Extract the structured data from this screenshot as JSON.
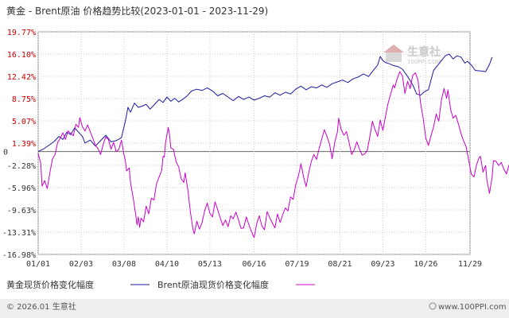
{
  "chart_data": {
    "type": "line",
    "title": "黄金 - Brent原油 价格趋势比较(2023-01-01 - 2023-11-29)",
    "y_ticks": [
      "19.77%",
      "16.10%",
      "12.42%",
      "8.75%",
      "5.07%",
      "1.39%",
      "-2.28%",
      "-5.96%",
      "-9.63%",
      "-13.31%",
      "-16.98%"
    ],
    "y_tick_values": [
      19.77,
      16.1,
      12.42,
      8.75,
      5.07,
      1.39,
      -2.28,
      -5.96,
      -9.63,
      -13.31,
      -16.98
    ],
    "zero_label": "0",
    "ylim": [
      -16.98,
      19.77
    ],
    "x_ticks": [
      "01/01",
      "02/03",
      "03/08",
      "04/10",
      "05/13",
      "06/16",
      "07/19",
      "08/21",
      "09/23",
      "10/26",
      "11/29"
    ],
    "x_tick_days": [
      0,
      33,
      66,
      99,
      132,
      166,
      199,
      232,
      265,
      298,
      332
    ],
    "xlim_days": [
      0,
      332
    ],
    "series": [
      {
        "name": "黄金现货价格变化幅度",
        "color": "#1a1aa0",
        "points": [
          [
            0,
            0
          ],
          [
            4,
            0.4
          ],
          [
            8,
            1.0
          ],
          [
            12,
            1.6
          ],
          [
            16,
            2.5
          ],
          [
            19,
            2.0
          ],
          [
            22,
            3.2
          ],
          [
            25,
            2.8
          ],
          [
            28,
            3.9
          ],
          [
            31,
            3.2
          ],
          [
            34,
            2.5
          ],
          [
            36,
            1.4
          ],
          [
            40,
            1.9
          ],
          [
            44,
            0.9
          ],
          [
            48,
            1.8
          ],
          [
            52,
            2.7
          ],
          [
            56,
            1.6
          ],
          [
            60,
            1.8
          ],
          [
            64,
            2.3
          ],
          [
            67,
            5.0
          ],
          [
            69,
            7.3
          ],
          [
            71,
            6.5
          ],
          [
            74,
            8.0
          ],
          [
            77,
            7.3
          ],
          [
            80,
            7.5
          ],
          [
            83,
            7.8
          ],
          [
            86,
            7.0
          ],
          [
            90,
            7.9
          ],
          [
            93,
            8.6
          ],
          [
            96,
            8.1
          ],
          [
            99,
            9.0
          ],
          [
            102,
            8.3
          ],
          [
            105,
            8.8
          ],
          [
            108,
            8.2
          ],
          [
            111,
            8.6
          ],
          [
            114,
            9.1
          ],
          [
            118,
            10.0
          ],
          [
            122,
            10.3
          ],
          [
            126,
            10.1
          ],
          [
            130,
            10.5
          ],
          [
            134,
            10.0
          ],
          [
            138,
            9.2
          ],
          [
            142,
            9.6
          ],
          [
            146,
            9.0
          ],
          [
            150,
            8.4
          ],
          [
            154,
            9.1
          ],
          [
            158,
            8.6
          ],
          [
            162,
            9.0
          ],
          [
            166,
            8.5
          ],
          [
            170,
            8.8
          ],
          [
            174,
            9.2
          ],
          [
            178,
            9.0
          ],
          [
            182,
            9.7
          ],
          [
            186,
            9.3
          ],
          [
            190,
            9.8
          ],
          [
            194,
            9.5
          ],
          [
            198,
            10.3
          ],
          [
            202,
            10.8
          ],
          [
            206,
            10.2
          ],
          [
            210,
            10.7
          ],
          [
            214,
            10.5
          ],
          [
            218,
            11.0
          ],
          [
            222,
            10.6
          ],
          [
            226,
            11.2
          ],
          [
            230,
            11.5
          ],
          [
            234,
            11.8
          ],
          [
            238,
            11.4
          ],
          [
            242,
            12.0
          ],
          [
            246,
            12.3
          ],
          [
            250,
            12.8
          ],
          [
            254,
            12.4
          ],
          [
            258,
            13.5
          ],
          [
            261,
            14.3
          ],
          [
            263,
            15.7
          ],
          [
            265,
            15.0
          ],
          [
            267,
            14.7
          ],
          [
            270,
            14.5
          ],
          [
            273,
            14.2
          ],
          [
            277,
            14.0
          ],
          [
            280,
            13.6
          ],
          [
            284,
            12.4
          ],
          [
            288,
            11.0
          ],
          [
            291,
            9.5
          ],
          [
            294,
            9.3
          ],
          [
            297,
            9.9
          ],
          [
            300,
            10.2
          ],
          [
            302,
            11.8
          ],
          [
            304,
            13.4
          ],
          [
            307,
            14.2
          ],
          [
            310,
            15.0
          ],
          [
            313,
            15.8
          ],
          [
            316,
            16.1
          ],
          [
            319,
            15.3
          ],
          [
            322,
            15.8
          ],
          [
            325,
            15.6
          ],
          [
            328,
            14.6
          ],
          [
            330,
            14.9
          ],
          [
            333,
            14.3
          ],
          [
            336,
            13.4
          ],
          [
            340,
            13.3
          ],
          [
            344,
            13.2
          ],
          [
            347,
            14.4
          ],
          [
            349,
            15.6
          ]
        ]
      },
      {
        "name": "Brent原油现货价格变化幅度",
        "color": "#cc00cc",
        "points": [
          [
            0,
            -0.3
          ],
          [
            2,
            -2.0
          ],
          [
            3,
            -5.7
          ],
          [
            5,
            -4.8
          ],
          [
            7,
            -6.1
          ],
          [
            9,
            -3.5
          ],
          [
            11,
            -1.2
          ],
          [
            13,
            -0.5
          ],
          [
            15,
            1.5
          ],
          [
            17,
            2.2
          ],
          [
            19,
            3.1
          ],
          [
            21,
            2.0
          ],
          [
            23,
            3.4
          ],
          [
            25,
            3.0
          ],
          [
            27,
            2.6
          ],
          [
            29,
            4.5
          ],
          [
            31,
            4.0
          ],
          [
            32,
            5.6
          ],
          [
            34,
            4.1
          ],
          [
            36,
            3.4
          ],
          [
            38,
            4.4
          ],
          [
            40,
            3.3
          ],
          [
            42,
            2.2
          ],
          [
            44,
            1.0
          ],
          [
            46,
            0.5
          ],
          [
            48,
            -0.5
          ],
          [
            50,
            1.2
          ],
          [
            52,
            2.4
          ],
          [
            54,
            2.0
          ],
          [
            56,
            0.4
          ],
          [
            58,
            1.5
          ],
          [
            60,
            0.0
          ],
          [
            62,
            0.3
          ],
          [
            64,
            1.9
          ],
          [
            66,
            -0.5
          ],
          [
            67,
            -1.5
          ],
          [
            68,
            -3.2
          ],
          [
            70,
            -2.7
          ],
          [
            71,
            -5.1
          ],
          [
            73,
            -7.6
          ],
          [
            75,
            -10.5
          ],
          [
            76,
            -12.1
          ],
          [
            77,
            -10.8
          ],
          [
            78,
            -12.5
          ],
          [
            79,
            -11.0
          ],
          [
            81,
            -11.6
          ],
          [
            83,
            -9.0
          ],
          [
            85,
            -10.3
          ],
          [
            87,
            -7.7
          ],
          [
            89,
            -8.0
          ],
          [
            91,
            -5.3
          ],
          [
            93,
            -4.2
          ],
          [
            95,
            -3.1
          ],
          [
            96,
            -0.8
          ],
          [
            97,
            -0.9
          ],
          [
            98,
            1.6
          ],
          [
            100,
            4.0
          ],
          [
            101,
            2.8
          ],
          [
            102,
            0.6
          ],
          [
            104,
            0.4
          ],
          [
            106,
            -1.7
          ],
          [
            108,
            -2.5
          ],
          [
            110,
            -4.5
          ],
          [
            112,
            -5.1
          ],
          [
            113,
            -3.5
          ],
          [
            115,
            -6.2
          ],
          [
            117,
            -10.0
          ],
          [
            119,
            -12.8
          ],
          [
            120,
            -13.6
          ],
          [
            122,
            -11.5
          ],
          [
            124,
            -12.8
          ],
          [
            126,
            -11.7
          ],
          [
            128,
            -9.8
          ],
          [
            130,
            -8.5
          ],
          [
            132,
            -10.2
          ],
          [
            134,
            -10.8
          ],
          [
            136,
            -8.3
          ],
          [
            138,
            -9.6
          ],
          [
            140,
            -11.0
          ],
          [
            142,
            -12.2
          ],
          [
            144,
            -11.3
          ],
          [
            146,
            -12.4
          ],
          [
            148,
            -10.6
          ],
          [
            150,
            -11.1
          ],
          [
            152,
            -10.0
          ],
          [
            154,
            -11.3
          ],
          [
            156,
            -12.7
          ],
          [
            158,
            -12.6
          ],
          [
            160,
            -10.8
          ],
          [
            162,
            -12.1
          ],
          [
            164,
            -13.2
          ],
          [
            166,
            -14.2
          ],
          [
            168,
            -11.9
          ],
          [
            170,
            -10.6
          ],
          [
            172,
            -12.3
          ],
          [
            174,
            -12.9
          ],
          [
            176,
            -9.9
          ],
          [
            178,
            -10.9
          ],
          [
            180,
            -11.8
          ],
          [
            182,
            -12.6
          ],
          [
            184,
            -10.3
          ],
          [
            186,
            -11.7
          ],
          [
            188,
            -10.4
          ],
          [
            190,
            -9.3
          ],
          [
            192,
            -9.8
          ],
          [
            194,
            -7.5
          ],
          [
            196,
            -7.9
          ],
          [
            198,
            -5.5
          ],
          [
            200,
            -4.1
          ],
          [
            202,
            -2.0
          ],
          [
            204,
            -4.2
          ],
          [
            206,
            -5.8
          ],
          [
            208,
            -3.5
          ],
          [
            210,
            -1.6
          ],
          [
            212,
            -0.5
          ],
          [
            214,
            -1.3
          ],
          [
            216,
            0.5
          ],
          [
            218,
            2.0
          ],
          [
            220,
            3.6
          ],
          [
            222,
            2.5
          ],
          [
            224,
            1.2
          ],
          [
            226,
            -1.2
          ],
          [
            228,
            1.5
          ],
          [
            230,
            3.2
          ],
          [
            231,
            5.5
          ],
          [
            233,
            3.6
          ],
          [
            235,
            2.7
          ],
          [
            237,
            3.3
          ],
          [
            239,
            1.5
          ],
          [
            241,
            -0.5
          ],
          [
            243,
            0.3
          ],
          [
            245,
            1.6
          ],
          [
            247,
            0.4
          ],
          [
            249,
            -0.6
          ],
          [
            251,
            -0.4
          ],
          [
            253,
            0.2
          ],
          [
            255,
            2.5
          ],
          [
            257,
            5.0
          ],
          [
            259,
            3.6
          ],
          [
            261,
            2.5
          ],
          [
            263,
            5.2
          ],
          [
            265,
            3.5
          ],
          [
            267,
            5.8
          ],
          [
            269,
            8.0
          ],
          [
            271,
            9.5
          ],
          [
            273,
            11.0
          ],
          [
            274,
            10.5
          ],
          [
            276,
            12.0
          ],
          [
            278,
            13.2
          ],
          [
            280,
            12.5
          ],
          [
            282,
            9.6
          ],
          [
            284,
            11.6
          ],
          [
            286,
            10.4
          ],
          [
            288,
            12.6
          ],
          [
            290,
            13.0
          ],
          [
            292,
            11.8
          ],
          [
            294,
            8.0
          ],
          [
            296,
            5.5
          ],
          [
            298,
            2.2
          ],
          [
            300,
            1.0
          ],
          [
            302,
            2.6
          ],
          [
            304,
            4.1
          ],
          [
            306,
            6.2
          ],
          [
            308,
            5.0
          ],
          [
            310,
            8.5
          ],
          [
            312,
            10.4
          ],
          [
            314,
            8.8
          ],
          [
            315,
            10.2
          ],
          [
            317,
            7.0
          ],
          [
            319,
            5.5
          ],
          [
            321,
            6.0
          ],
          [
            323,
            4.6
          ],
          [
            325,
            3.0
          ],
          [
            327,
            1.8
          ],
          [
            329,
            0.8
          ],
          [
            331,
            -1.5
          ],
          [
            333,
            -3.7
          ],
          [
            335,
            -4.2
          ],
          [
            337,
            -2.2
          ],
          [
            339,
            -1.0
          ],
          [
            340,
            -0.8
          ],
          [
            342,
            -3.4
          ],
          [
            344,
            -2.3
          ],
          [
            345,
            -4.8
          ],
          [
            347,
            -6.9
          ],
          [
            349,
            -4.2
          ],
          [
            350,
            -1.5
          ],
          [
            352,
            -1.6
          ],
          [
            354,
            -2.3
          ],
          [
            356,
            -1.8
          ],
          [
            358,
            -2.9
          ],
          [
            360,
            -3.7
          ],
          [
            362,
            -2.2
          ],
          [
            364,
            -3.9
          ]
        ]
      }
    ],
    "grid": true,
    "legend_position": "bottom-left"
  },
  "watermark": {
    "cn": "生意社",
    "en": "100PPI.COM"
  },
  "footer": {
    "left": "© 2026.01 生意社",
    "right": "www.100PPI.com"
  }
}
